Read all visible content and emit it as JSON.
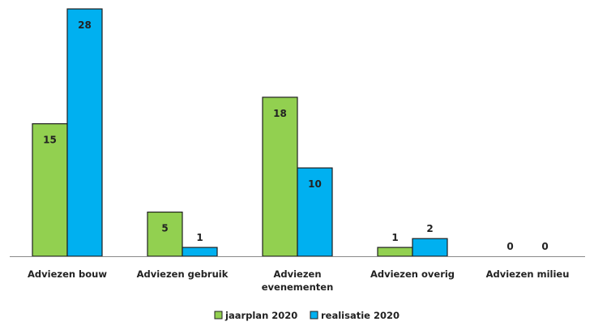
{
  "chart_data": {
    "type": "bar",
    "title": "",
    "xlabel": "",
    "ylabel": "",
    "categories": [
      [
        "Adviezen bouw"
      ],
      [
        "Adviezen gebruik"
      ],
      [
        "Adviezen",
        "evenementen"
      ],
      [
        "Adviezen overig"
      ],
      [
        "Adviezen milieu"
      ]
    ],
    "series": [
      {
        "name": "jaarplan 2020",
        "color": "#92d050",
        "values": [
          15,
          5,
          18,
          1,
          0
        ]
      },
      {
        "name": "realisatie 2020",
        "color": "#00b0f0",
        "values": [
          28,
          1,
          10,
          2,
          0
        ]
      }
    ],
    "ylim": [
      0,
      28
    ],
    "grid": false,
    "legend_position": "bottom"
  }
}
